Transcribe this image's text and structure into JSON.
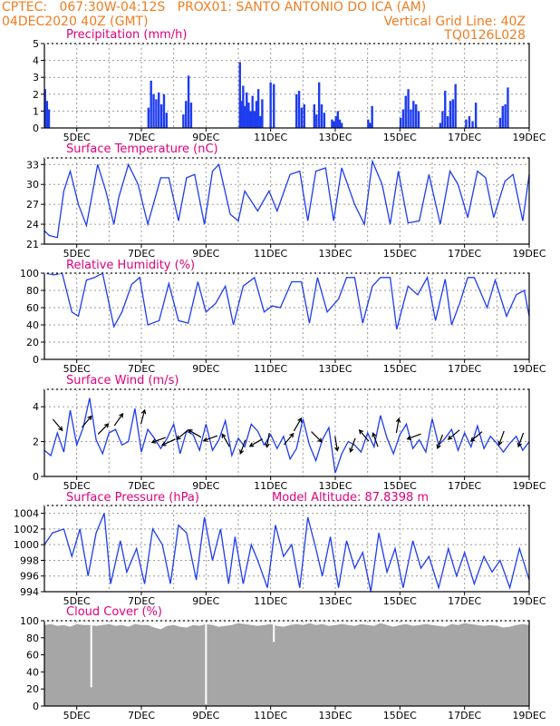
{
  "header": {
    "line1_left": "CPTEC:   067:30W-04:12S   PROX01: SANTO ANTONIO DO ICA (AM)",
    "line2_left": "04DEC2020 40Z (GMT)",
    "line2_right": "Vertical Grid Line: 40Z",
    "line3_right": "TQ0126L028"
  },
  "colors": {
    "header": "#ef7d22",
    "title": "#e0007a",
    "series": "#1e3cf0",
    "cloud": "#a6a6a6",
    "grid": "#9a9a9a",
    "arrow": "#000000"
  },
  "x_axis": {
    "tick_labels": [
      "5DEC",
      "7DEC",
      "9DEC",
      "11DEC",
      "13DEC",
      "15DEC",
      "17DEC",
      "19DEC"
    ],
    "tick_positions_days": [
      1,
      3,
      5,
      7,
      9,
      11,
      13,
      15
    ],
    "range_days": [
      0,
      15
    ]
  },
  "chart_data": [
    {
      "type": "bar",
      "title": "Precipitation (mm/h)",
      "ylim": [
        0,
        5
      ],
      "yticks": [
        0,
        1,
        2,
        3,
        4,
        5
      ],
      "grid": true,
      "x_day": [
        0.02,
        0.08,
        0.14,
        3.22,
        3.3,
        3.38,
        3.46,
        3.54,
        3.62,
        3.7,
        3.78,
        4.3,
        4.38,
        4.46,
        4.54,
        6.05,
        6.1,
        6.15,
        6.2,
        6.26,
        6.32,
        6.38,
        6.44,
        6.5,
        6.56,
        6.62,
        6.68,
        6.74,
        7.0,
        7.1,
        7.8,
        7.88,
        7.96,
        8.04,
        8.35,
        8.42,
        8.5,
        8.58,
        8.66,
        8.9,
        8.96,
        9.02,
        9.08,
        9.14,
        9.2,
        10.02,
        10.08,
        10.14,
        11.02,
        11.1,
        11.18,
        11.26,
        11.34,
        11.42,
        11.5,
        11.58,
        12.25,
        12.32,
        12.4,
        12.48,
        12.56,
        12.64,
        12.72,
        13.05,
        13.15,
        13.25,
        13.35,
        14.1,
        14.18,
        14.26,
        14.34
      ],
      "values": [
        2.3,
        1.6,
        1.1,
        1.2,
        2.8,
        2.0,
        1.7,
        2.1,
        1.4,
        2.0,
        0.9,
        0.8,
        1.6,
        3.1,
        1.5,
        3.9,
        1.6,
        2.5,
        1.3,
        2.1,
        1.5,
        1.0,
        1.9,
        1.0,
        1.6,
        2.3,
        0.7,
        1.7,
        2.7,
        2.6,
        2.0,
        2.2,
        1.2,
        1.4,
        1.4,
        0.8,
        2.7,
        1.4,
        0.9,
        0.5,
        0.4,
        0.7,
        1.0,
        0.5,
        0.3,
        0.5,
        0.3,
        1.3,
        0.6,
        1.1,
        1.9,
        2.3,
        1.1,
        1.6,
        1.4,
        1.0,
        0.3,
        1.0,
        2.2,
        0.7,
        1.6,
        1.7,
        2.6,
        0.5,
        0.7,
        0.4,
        1.5,
        0.6,
        1.3,
        1.4,
        2.4
      ]
    },
    {
      "type": "line",
      "title": "Surface Temperature (nC)",
      "ylim": [
        21,
        34
      ],
      "yticks": [
        21,
        24,
        27,
        30,
        33
      ],
      "grid": true,
      "x_day": [
        0.0,
        0.15,
        0.4,
        0.6,
        0.8,
        1.05,
        1.3,
        1.65,
        1.9,
        2.15,
        2.3,
        2.6,
        2.9,
        3.2,
        3.6,
        3.85,
        4.15,
        4.4,
        4.65,
        4.95,
        5.2,
        5.4,
        5.75,
        6.0,
        6.2,
        6.6,
        6.95,
        7.2,
        7.6,
        7.9,
        8.15,
        8.4,
        8.7,
        8.95,
        9.2,
        9.6,
        9.9,
        10.15,
        10.45,
        10.7,
        10.95,
        11.25,
        11.6,
        11.9,
        12.25,
        12.55,
        12.8,
        13.1,
        13.4,
        13.65,
        13.9,
        14.25,
        14.5,
        14.8,
        15.0
      ],
      "values": [
        23.0,
        22.3,
        22.0,
        29.0,
        32.0,
        27.0,
        23.8,
        33.0,
        29.0,
        24.0,
        28.0,
        33.0,
        30.0,
        24.0,
        31.0,
        31.0,
        24.5,
        31.0,
        31.5,
        24.0,
        32.0,
        33.0,
        25.5,
        24.5,
        29.0,
        26.0,
        29.0,
        26.0,
        31.5,
        32.0,
        24.5,
        32.0,
        32.5,
        24.5,
        32.5,
        27.0,
        24.0,
        33.5,
        30.0,
        24.0,
        32.0,
        24.2,
        24.5,
        31.5,
        24.0,
        32.0,
        30.0,
        25.0,
        32.0,
        31.0,
        25.0,
        30.5,
        31.5,
        24.5,
        31.5
      ]
    },
    {
      "type": "line",
      "title": "Relative Humidity (%)",
      "ylim": [
        0,
        100
      ],
      "yticks": [
        0,
        20,
        40,
        60,
        80,
        100
      ],
      "grid": true,
      "x_day": [
        0.0,
        0.3,
        0.55,
        0.85,
        1.05,
        1.3,
        1.55,
        1.8,
        2.15,
        2.4,
        2.7,
        2.95,
        3.2,
        3.55,
        3.85,
        4.15,
        4.45,
        4.75,
        5.0,
        5.3,
        5.6,
        5.85,
        6.15,
        6.5,
        6.8,
        7.05,
        7.3,
        7.65,
        7.95,
        8.2,
        8.45,
        8.75,
        9.1,
        9.35,
        9.6,
        9.85,
        10.15,
        10.4,
        10.7,
        10.9,
        11.25,
        11.55,
        11.85,
        12.1,
        12.4,
        12.6,
        12.85,
        13.1,
        13.3,
        13.7,
        13.95,
        14.3,
        14.6,
        14.85,
        15.0
      ],
      "values": [
        100,
        98,
        100,
        55,
        50,
        92,
        95,
        100,
        38,
        55,
        87,
        95,
        40,
        45,
        88,
        45,
        42,
        90,
        55,
        65,
        85,
        40,
        85,
        95,
        55,
        62,
        60,
        90,
        90,
        42,
        95,
        55,
        70,
        95,
        95,
        42,
        85,
        95,
        95,
        35,
        85,
        75,
        95,
        45,
        93,
        40,
        65,
        95,
        95,
        60,
        92,
        50,
        75,
        80,
        50
      ]
    },
    {
      "type": "line",
      "title": "Surface Wind (m/s)",
      "ylim": [
        0,
        5
      ],
      "yticks": [
        0,
        2,
        4
      ],
      "grid": true,
      "x_day": [
        0.0,
        0.2,
        0.4,
        0.6,
        0.8,
        1.0,
        1.2,
        1.4,
        1.6,
        1.8,
        2.0,
        2.2,
        2.4,
        2.6,
        2.8,
        3.0,
        3.2,
        3.4,
        3.6,
        3.8,
        4.0,
        4.2,
        4.4,
        4.6,
        4.8,
        5.0,
        5.2,
        5.4,
        5.6,
        5.8,
        6.0,
        6.2,
        6.4,
        6.6,
        6.8,
        7.0,
        7.2,
        7.4,
        7.6,
        7.8,
        8.0,
        8.2,
        8.4,
        8.6,
        8.8,
        9.0,
        9.2,
        9.4,
        9.6,
        9.8,
        10.0,
        10.2,
        10.4,
        10.6,
        10.8,
        11.0,
        11.2,
        11.4,
        11.6,
        11.8,
        12.0,
        12.2,
        12.4,
        12.6,
        12.8,
        13.0,
        13.2,
        13.4,
        13.6,
        13.8,
        14.0,
        14.2,
        14.4,
        14.6,
        14.8,
        15.0
      ],
      "values": [
        1.5,
        1.2,
        2.5,
        1.4,
        3.8,
        1.8,
        2.8,
        4.5,
        2.1,
        1.3,
        2.5,
        2.7,
        1.8,
        2.0,
        3.9,
        1.4,
        2.7,
        2.2,
        1.6,
        2.2,
        3.0,
        1.3,
        2.6,
        2.4,
        1.5,
        3.0,
        1.5,
        2.1,
        3.2,
        1.2,
        2.2,
        1.7,
        3.0,
        2.6,
        1.8,
        2.4,
        1.6,
        2.3,
        1.0,
        1.6,
        3.3,
        1.8,
        0.9,
        2.1,
        2.8,
        0.2,
        1.3,
        2.0,
        1.8,
        1.4,
        2.5,
        1.7,
        3.5,
        2.2,
        1.3,
        2.4,
        3.0,
        1.6,
        2.1,
        1.4,
        3.3,
        1.8,
        2.2,
        2.7,
        1.5,
        2.5,
        1.7,
        2.9,
        1.6,
        2.3,
        1.9,
        1.4,
        1.9,
        2.3,
        1.5,
        2.0
      ],
      "arrows": [
        {
          "x_day": 0.3,
          "y": 3.2,
          "dir_deg": 140
        },
        {
          "x_day": 1.2,
          "y": 2.9,
          "dir_deg": 40
        },
        {
          "x_day": 1.7,
          "y": 2.5,
          "dir_deg": 45
        },
        {
          "x_day": 2.2,
          "y": 3.0,
          "dir_deg": 35
        },
        {
          "x_day": 3.0,
          "y": 3.1,
          "dir_deg": 15
        },
        {
          "x_day": 3.7,
          "y": 2.2,
          "dir_deg": 250
        },
        {
          "x_day": 4.0,
          "y": 2.1,
          "dir_deg": 245
        },
        {
          "x_day": 4.4,
          "y": 2.6,
          "dir_deg": 230
        },
        {
          "x_day": 4.8,
          "y": 2.3,
          "dir_deg": 300
        },
        {
          "x_day": 5.3,
          "y": 2.3,
          "dir_deg": 250
        },
        {
          "x_day": 5.7,
          "y": 1.8,
          "dir_deg": 330
        },
        {
          "x_day": 6.2,
          "y": 2.0,
          "dir_deg": 200
        },
        {
          "x_day": 6.7,
          "y": 2.1,
          "dir_deg": 240
        },
        {
          "x_day": 6.95,
          "y": 2.4,
          "dir_deg": 190
        },
        {
          "x_day": 7.45,
          "y": 1.9,
          "dir_deg": 40
        },
        {
          "x_day": 7.75,
          "y": 2.7,
          "dir_deg": 30
        },
        {
          "x_day": 8.3,
          "y": 2.5,
          "dir_deg": 135
        },
        {
          "x_day": 9.0,
          "y": 2.2,
          "dir_deg": 170
        },
        {
          "x_day": 9.6,
          "y": 2.1,
          "dir_deg": 200
        },
        {
          "x_day": 10.0,
          "y": 2.1,
          "dir_deg": 320
        },
        {
          "x_day": 10.3,
          "y": 1.8,
          "dir_deg": 340
        },
        {
          "x_day": 10.9,
          "y": 2.6,
          "dir_deg": 10
        },
        {
          "x_day": 11.6,
          "y": 2.4,
          "dir_deg": 250
        },
        {
          "x_day": 12.3,
          "y": 2.3,
          "dir_deg": 200
        },
        {
          "x_day": 12.8,
          "y": 2.6,
          "dir_deg": 230
        },
        {
          "x_day": 13.5,
          "y": 2.5,
          "dir_deg": 230
        },
        {
          "x_day": 14.2,
          "y": 2.5,
          "dir_deg": 200
        },
        {
          "x_day": 14.8,
          "y": 2.4,
          "dir_deg": 200
        }
      ]
    },
    {
      "type": "line",
      "title": "Surface Pressure (hPa)",
      "annotation": "Model Altitude: 87.8398 m",
      "ylim": [
        994,
        1005
      ],
      "yticks": [
        994,
        996,
        998,
        1000,
        1002,
        1004
      ],
      "grid": true,
      "x_day": [
        0.0,
        0.25,
        0.6,
        0.85,
        1.1,
        1.35,
        1.6,
        1.85,
        2.05,
        2.35,
        2.55,
        2.85,
        3.1,
        3.35,
        3.65,
        3.9,
        4.15,
        4.4,
        4.7,
        4.95,
        5.2,
        5.45,
        5.7,
        5.9,
        6.15,
        6.4,
        6.6,
        6.9,
        7.15,
        7.4,
        7.65,
        7.9,
        8.15,
        8.4,
        8.6,
        8.85,
        9.1,
        9.35,
        9.6,
        9.85,
        10.1,
        10.35,
        10.6,
        10.85,
        11.1,
        11.4,
        11.65,
        11.9,
        12.2,
        12.5,
        12.75,
        13.0,
        13.3,
        13.6,
        13.85,
        14.1,
        14.4,
        14.7,
        15.0
      ],
      "values": [
        1000.0,
        1001.5,
        1002.0,
        998.5,
        1002.0,
        996.0,
        1001.5,
        1004.0,
        995.0,
        1000.5,
        996.5,
        999.5,
        995.0,
        1002.0,
        1000.0,
        995.0,
        1002.5,
        1001.5,
        995.5,
        1003.5,
        998.0,
        1002.0,
        995.0,
        1001.0,
        995.0,
        1000.0,
        998.0,
        994.5,
        1002.5,
        998.5,
        1000.0,
        994.5,
        1003.5,
        999.5,
        996.0,
        1001.0,
        994.5,
        1000.5,
        997.0,
        999.0,
        994.0,
        1001.5,
        996.5,
        999.5,
        994.5,
        1000.5,
        997.0,
        998.5,
        994.5,
        999.5,
        996.0,
        999.0,
        995.0,
        998.5,
        996.5,
        998.0,
        994.5,
        999.5,
        995.5
      ]
    },
    {
      "type": "area",
      "title": "Cloud Cover (%)",
      "ylim": [
        0,
        100
      ],
      "yticks": [
        0,
        20,
        40,
        60,
        80,
        100
      ],
      "grid": true,
      "x_day": [
        0.0,
        0.2,
        0.4,
        0.6,
        0.8,
        1.0,
        1.2,
        1.4,
        1.6,
        1.8,
        2.0,
        2.2,
        2.4,
        2.6,
        2.8,
        3.0,
        3.2,
        3.4,
        3.6,
        3.8,
        4.0,
        4.2,
        4.4,
        4.6,
        4.8,
        5.0,
        5.2,
        5.4,
        5.6,
        5.8,
        6.0,
        6.2,
        6.4,
        6.6,
        6.8,
        7.0,
        7.2,
        7.4,
        7.6,
        7.8,
        8.0,
        8.2,
        8.4,
        8.6,
        8.8,
        9.0,
        9.2,
        9.4,
        9.6,
        9.8,
        10.0,
        10.2,
        10.4,
        10.6,
        10.8,
        11.0,
        11.2,
        11.4,
        11.6,
        11.8,
        12.0,
        12.2,
        12.4,
        12.6,
        12.8,
        13.0,
        13.2,
        13.4,
        13.6,
        13.8,
        14.0,
        14.2,
        14.4,
        14.6,
        14.8,
        15.0
      ],
      "values": [
        95,
        96,
        94,
        95,
        93,
        96,
        95,
        95,
        94,
        95,
        96,
        94,
        95,
        93,
        96,
        95,
        95,
        92,
        90,
        94,
        95,
        93,
        92,
        95,
        94,
        96,
        95,
        93,
        94,
        95,
        97,
        96,
        95,
        94,
        95,
        96,
        94,
        93,
        95,
        96,
        95,
        97,
        95,
        96,
        94,
        95,
        96,
        95,
        94,
        96,
        95,
        94,
        97,
        95,
        93,
        95,
        96,
        94,
        95,
        96,
        95,
        94,
        93,
        96,
        95,
        97,
        96,
        95,
        94,
        95,
        94,
        92,
        93,
        95,
        96,
        95
      ],
      "dips": [
        {
          "x_day": 1.45,
          "value": 22
        },
        {
          "x_day": 5.0,
          "value": 2
        },
        {
          "x_day": 7.1,
          "value": 75
        }
      ]
    }
  ]
}
